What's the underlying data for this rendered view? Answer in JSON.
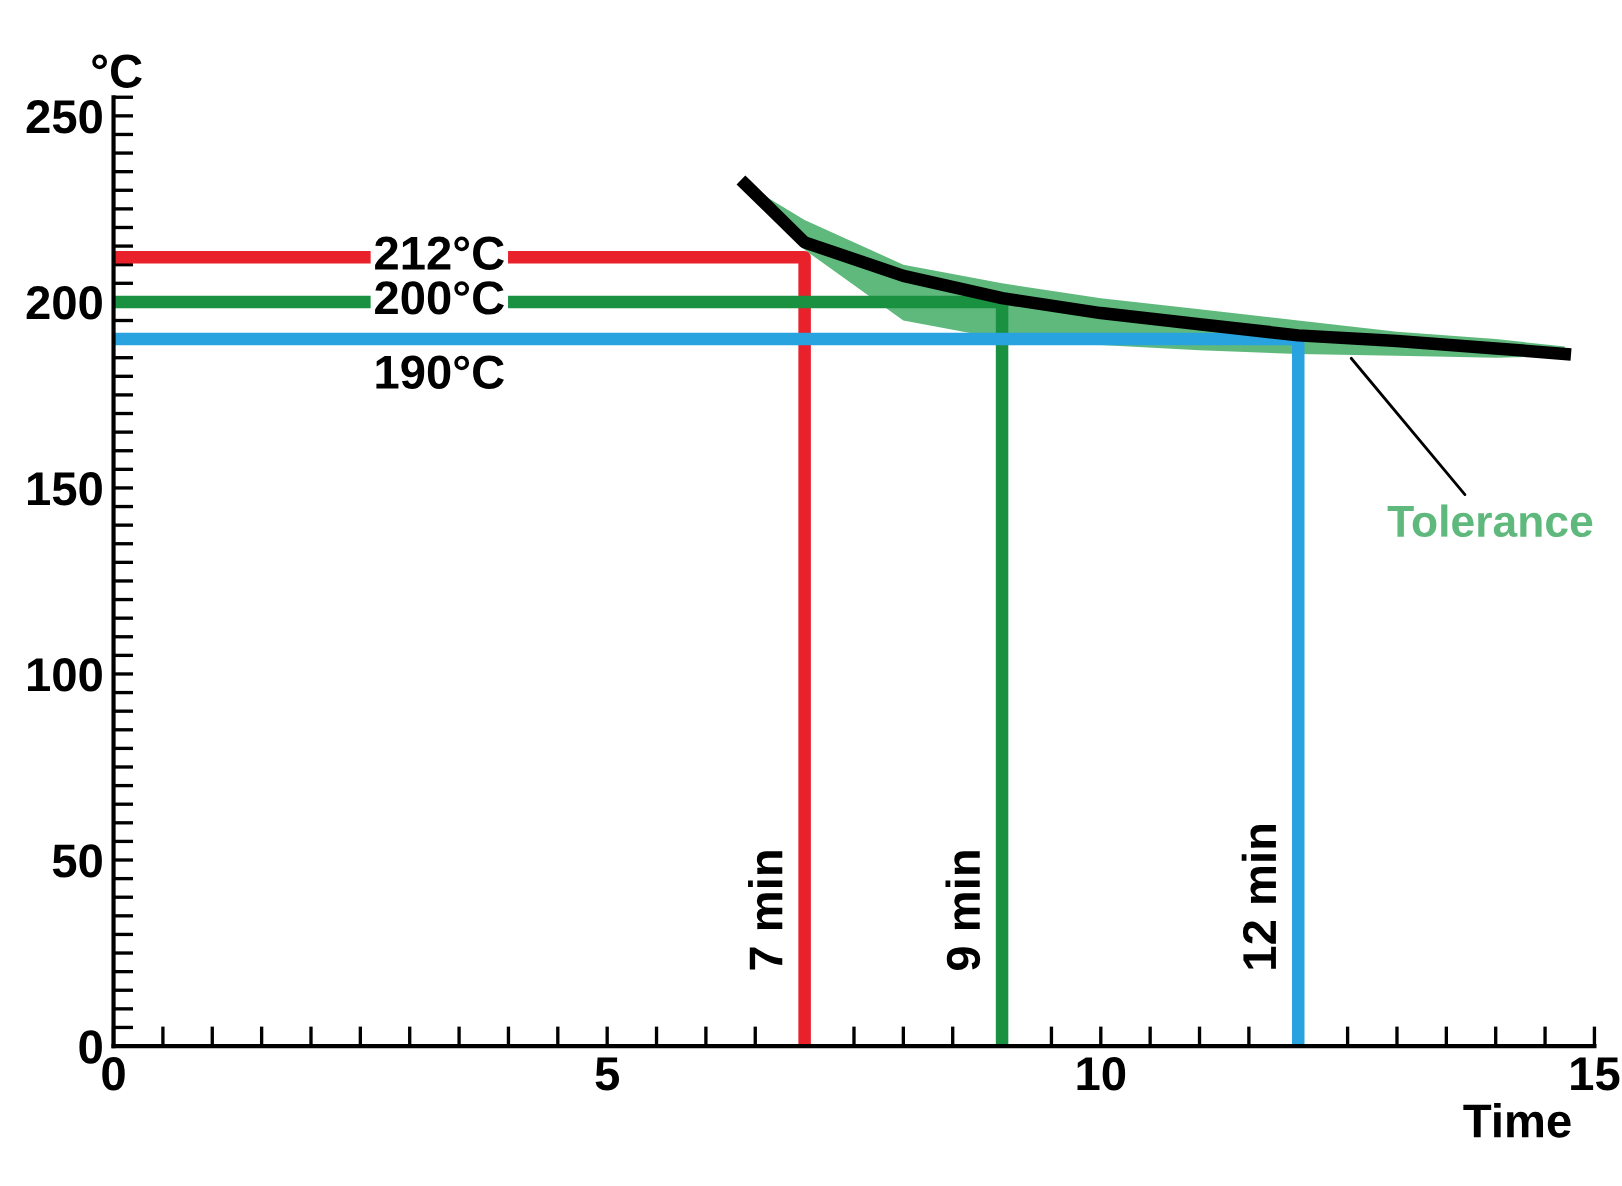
{
  "chart_data": {
    "type": "line",
    "xlabel": "Time",
    "ylabel": "°C",
    "xlim": [
      0,
      15
    ],
    "xticks": [
      0,
      5,
      10,
      15
    ],
    "ylim": [
      0,
      255
    ],
    "yticks": [
      0,
      50,
      100,
      150,
      200,
      250
    ],
    "grid": false,
    "legend": false,
    "marker": "none",
    "series": [
      {
        "color": "#e8212b",
        "x": [
          0,
          7,
          7
        ],
        "values": [
          212,
          212,
          0
        ]
      },
      {
        "color": "#1a9141",
        "x": [
          0,
          9,
          9
        ],
        "values": [
          200,
          200,
          0
        ]
      },
      {
        "color": "#29a3e0",
        "x": [
          0,
          12,
          12
        ],
        "values": [
          190,
          190,
          0
        ]
      },
      {
        "color": "#5fb97c",
        "x": [
          6.4,
          7,
          8,
          9,
          10,
          11,
          12,
          13,
          14,
          14.7
        ],
        "values": [
          null,
          null,
          null,
          null,
          null,
          null,
          null,
          null,
          null,
          null
        ],
        "lower": [
          231.6,
          214,
          195,
          190,
          188.4,
          187,
          186,
          185.5,
          185,
          185.5
        ],
        "upper": [
          231.6,
          222,
          210,
          205,
          201,
          198,
          195,
          192,
          190,
          188
        ]
      },
      {
        "color": "#000000",
        "x": [
          6.4,
          7,
          8,
          9,
          10,
          11,
          12,
          13,
          14,
          14.7
        ],
        "values": [
          231.6,
          216,
          207,
          201,
          197,
          194,
          191,
          189.5,
          187.5,
          186
        ]
      }
    ],
    "annotations": [
      "212°C",
      "200°C",
      "190°C",
      "7 min",
      "9 min",
      "12 min",
      {
        "text": "Tolerance",
        "x": 12.5,
        "y": 186
      }
    ]
  }
}
